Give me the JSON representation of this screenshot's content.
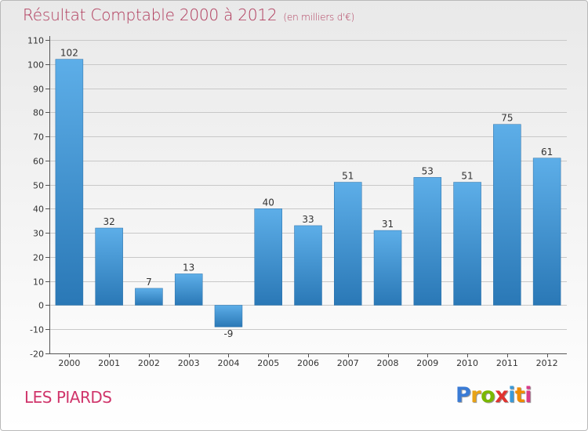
{
  "header": {
    "title": "Résultat Comptable 2000 à 2012",
    "subtitle": "(en milliers d'€)"
  },
  "footer": {
    "commune": "LES PIARDS",
    "logo_letters": [
      "P",
      "r",
      "o",
      "x",
      "i",
      "t",
      "i"
    ],
    "logo_colors": [
      "#3a7bd5",
      "#e8a317",
      "#7ab800",
      "#e0332f",
      "#3a9ad9",
      "#f08c00",
      "#d93a8a"
    ]
  },
  "chart_data": {
    "type": "bar",
    "title": "Résultat Comptable 2000 à 2012",
    "subtitle": "(en milliers d'€)",
    "xlabel": "",
    "ylabel": "",
    "categories": [
      "2000",
      "2001",
      "2002",
      "2003",
      "2004",
      "2005",
      "2006",
      "2007",
      "2008",
      "2009",
      "2010",
      "2011",
      "2012"
    ],
    "values": [
      102,
      32,
      7,
      13,
      -9,
      40,
      33,
      51,
      31,
      53,
      51,
      75,
      61
    ],
    "ylim": [
      -20,
      110
    ],
    "yticks": [
      -20,
      -10,
      0,
      10,
      20,
      30,
      40,
      50,
      60,
      70,
      80,
      90,
      100,
      110
    ],
    "grid": true,
    "bar_color_light": "#5daee8",
    "bar_color_dark": "#2a78b6"
  }
}
